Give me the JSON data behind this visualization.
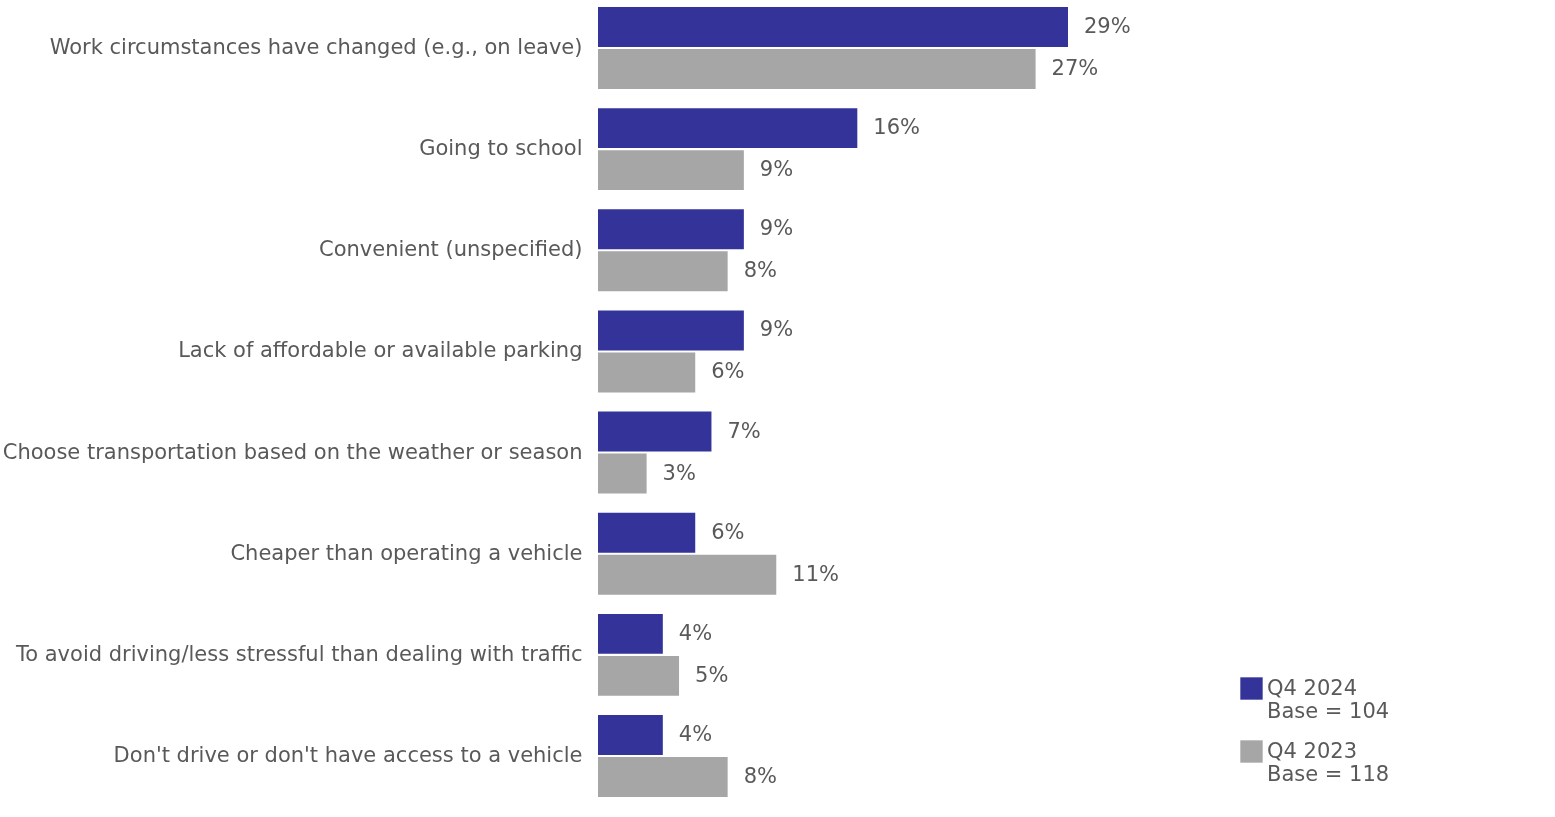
{
  "chart_data": {
    "type": "bar",
    "orientation": "horizontal",
    "categories": [
      "Work circumstances have changed (e.g., on leave)",
      "Going to school",
      "Convenient (unspecified)",
      "Lack of affordable or available parking",
      "Choose transportation based on the weather or season",
      "Cheaper than operating a vehicle",
      "To avoid driving/less stressful than dealing with traffic",
      "Don't drive or don't have access to a vehicle"
    ],
    "series": [
      {
        "name": "Q4 2024\nBase = 104",
        "color": "#333399",
        "values": [
          29,
          16,
          9,
          9,
          7,
          6,
          4,
          4
        ],
        "value_labels": [
          "29%",
          "16%",
          "9%",
          "9%",
          "7%",
          "6%",
          "4%",
          "4%"
        ]
      },
      {
        "name": "Q4 2023\nBase = 118",
        "color": "#a6a6a6",
        "values": [
          27,
          9,
          8,
          6,
          3,
          11,
          5,
          8
        ],
        "value_labels": [
          "27%",
          "9%",
          "8%",
          "6%",
          "3%",
          "11%",
          "5%",
          "8%"
        ]
      }
    ],
    "legend": "bottom right",
    "grid": false
  }
}
